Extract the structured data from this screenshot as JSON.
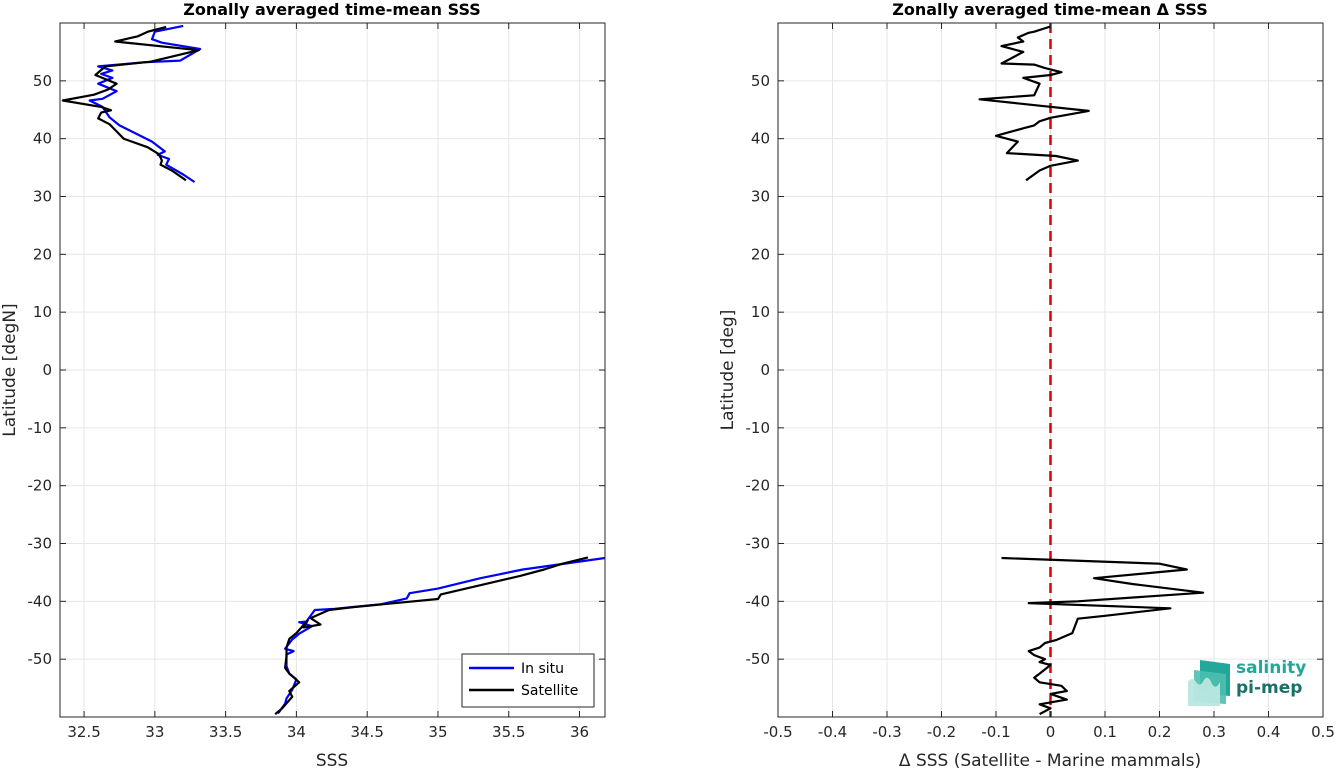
{
  "chart_data": [
    {
      "type": "line",
      "title": "Zonally averaged time-mean SSS",
      "xlabel": "SSS",
      "ylabel": "Latitude [degN]",
      "xlim": [
        32.33,
        36.18
      ],
      "ylim": [
        -60,
        60
      ],
      "xticks": [
        "32.5",
        "33",
        "33.5",
        "34",
        "34.5",
        "35",
        "35.5",
        "36"
      ],
      "xtick_values": [
        32.5,
        33,
        33.5,
        34,
        34.5,
        35,
        35.5,
        36
      ],
      "yticks": [
        "50",
        "40",
        "30",
        "20",
        "10",
        "0",
        "-10",
        "-20",
        "-30",
        "-40",
        "-50"
      ],
      "ytick_values": [
        50,
        40,
        30,
        20,
        10,
        0,
        -10,
        -20,
        -30,
        -40,
        -50
      ],
      "grid": true,
      "legend_position": "bottom-right",
      "series": [
        {
          "name": "In situ",
          "color": "#0000ff",
          "segments": [
            [
              [
                33.28,
                32.5
              ],
              [
                33.2,
                33.8
              ],
              [
                33.08,
                35.5
              ],
              [
                33.1,
                36.5
              ],
              [
                33.02,
                37.2
              ],
              [
                33.07,
                37.8
              ],
              [
                32.98,
                39.5
              ],
              [
                32.75,
                42.3
              ],
              [
                32.68,
                43.7
              ],
              [
                32.63,
                45.5
              ],
              [
                32.54,
                46.6
              ],
              [
                32.63,
                46.9
              ],
              [
                32.73,
                48.2
              ],
              [
                32.6,
                49.5
              ],
              [
                32.7,
                50.5
              ],
              [
                32.62,
                51.2
              ],
              [
                32.7,
                51.8
              ],
              [
                32.6,
                52.5
              ],
              [
                32.92,
                53.2
              ],
              [
                33.18,
                53.5
              ],
              [
                33.32,
                55.5
              ],
              [
                33.05,
                56.6
              ],
              [
                32.98,
                57.2
              ],
              [
                33.0,
                58.5
              ],
              [
                33.2,
                59.5
              ]
            ],
            [
              [
                36.18,
                -32.5
              ],
              [
                35.6,
                -34.5
              ],
              [
                35.3,
                -36.0
              ],
              [
                35.0,
                -37.8
              ],
              [
                34.8,
                -38.6
              ],
              [
                34.78,
                -39.5
              ],
              [
                34.6,
                -40.5
              ],
              [
                34.27,
                -41.3
              ],
              [
                34.13,
                -41.5
              ],
              [
                34.07,
                -43.5
              ],
              [
                34.02,
                -43.6
              ],
              [
                34.11,
                -44.3
              ],
              [
                34.02,
                -45.6
              ],
              [
                33.97,
                -46.6
              ],
              [
                33.92,
                -48.2
              ],
              [
                33.98,
                -48.6
              ],
              [
                33.93,
                -49.2
              ],
              [
                33.93,
                -51.2
              ],
              [
                33.95,
                -52.5
              ],
              [
                34.0,
                -53.5
              ],
              [
                33.97,
                -55.3
              ],
              [
                33.93,
                -56.8
              ],
              [
                33.92,
                -57.7
              ],
              [
                33.87,
                -59.4
              ]
            ]
          ]
        },
        {
          "name": "Satellite",
          "color": "#000000",
          "segments": [
            [
              [
                33.22,
                32.8
              ],
              [
                33.12,
                34.5
              ],
              [
                33.04,
                35.5
              ],
              [
                33.05,
                36.2
              ],
              [
                33.03,
                37.3
              ],
              [
                32.95,
                38.5
              ],
              [
                32.78,
                40.0
              ],
              [
                32.72,
                41.5
              ],
              [
                32.68,
                42.5
              ],
              [
                32.6,
                43.5
              ],
              [
                32.62,
                44.5
              ],
              [
                32.69,
                44.9
              ],
              [
                32.62,
                45.5
              ],
              [
                32.35,
                46.6
              ],
              [
                32.57,
                47.6
              ],
              [
                32.67,
                48.5
              ],
              [
                32.73,
                49.5
              ],
              [
                32.58,
                51.0
              ],
              [
                32.65,
                52.5
              ],
              [
                32.97,
                53.3
              ],
              [
                33.31,
                55.3
              ],
              [
                32.72,
                56.8
              ],
              [
                32.88,
                57.7
              ],
              [
                32.95,
                58.5
              ],
              [
                33.08,
                59.3
              ]
            ],
            [
              [
                36.06,
                -32.4
              ],
              [
                35.88,
                -33.5
              ],
              [
                35.75,
                -34.5
              ],
              [
                35.58,
                -35.6
              ],
              [
                35.02,
                -38.8
              ],
              [
                35.0,
                -39.6
              ],
              [
                34.4,
                -41.0
              ],
              [
                34.23,
                -41.5
              ],
              [
                34.1,
                -42.9
              ],
              [
                34.17,
                -44.0
              ],
              [
                34.05,
                -44.5
              ],
              [
                34.08,
                -43.3
              ],
              [
                34.0,
                -45.5
              ],
              [
                33.95,
                -46.5
              ],
              [
                33.93,
                -48.0
              ],
              [
                33.93,
                -49.5
              ],
              [
                33.92,
                -51.5
              ],
              [
                33.95,
                -52.5
              ],
              [
                34.02,
                -54.0
              ],
              [
                33.95,
                -55.5
              ],
              [
                33.97,
                -56.5
              ],
              [
                33.9,
                -58.5
              ],
              [
                33.85,
                -59.5
              ]
            ]
          ]
        }
      ]
    },
    {
      "type": "line",
      "title": "Zonally averaged time-mean Δ SSS",
      "xlabel": "Δ SSS (Satellite - Marine mammals)",
      "ylabel": "Latitude [deg]",
      "xlim": [
        -0.5,
        0.5
      ],
      "ylim": [
        -60,
        60
      ],
      "xticks": [
        "-0.5",
        "-0.4",
        "-0.3",
        "-0.2",
        "-0.1",
        "0",
        "0.1",
        "0.2",
        "0.3",
        "0.4",
        "0.5"
      ],
      "xtick_values": [
        -0.5,
        -0.4,
        -0.3,
        -0.2,
        -0.1,
        0,
        0.1,
        0.2,
        0.3,
        0.4,
        0.5
      ],
      "yticks": [
        "50",
        "40",
        "30",
        "20",
        "10",
        "0",
        "-10",
        "-20",
        "-30",
        "-40",
        "-50"
      ],
      "ytick_values": [
        50,
        40,
        30,
        20,
        10,
        0,
        -10,
        -20,
        -30,
        -40,
        -50
      ],
      "grid": true,
      "reference_line": {
        "x": 0,
        "color": "#dd0000",
        "style": "dashed"
      },
      "series": [
        {
          "color": "#000000",
          "segments": [
            [
              [
                -0.045,
                32.8
              ],
              [
                -0.02,
                34.5
              ],
              [
                0.0,
                35.3
              ],
              [
                0.05,
                36.2
              ],
              [
                0.01,
                37.0
              ],
              [
                -0.08,
                37.5
              ],
              [
                -0.06,
                39.5
              ],
              [
                -0.1,
                40.5
              ],
              [
                -0.05,
                41.8
              ],
              [
                -0.03,
                42.3
              ],
              [
                -0.02,
                43.0
              ],
              [
                0.0,
                43.6
              ],
              [
                0.07,
                44.8
              ],
              [
                -0.13,
                46.8
              ],
              [
                -0.03,
                47.5
              ],
              [
                -0.02,
                49.5
              ],
              [
                -0.05,
                50.5
              ],
              [
                0.0,
                51.0
              ],
              [
                0.02,
                51.5
              ],
              [
                -0.01,
                52.2
              ],
              [
                -0.03,
                52.8
              ],
              [
                -0.09,
                53.0
              ],
              [
                -0.05,
                55.0
              ],
              [
                -0.09,
                56.0
              ],
              [
                -0.05,
                56.8
              ],
              [
                -0.06,
                57.5
              ],
              [
                -0.04,
                58.3
              ],
              [
                -0.03,
                58.5
              ],
              [
                0.0,
                59.4
              ]
            ],
            [
              [
                -0.09,
                -32.5
              ],
              [
                0.2,
                -33.5
              ],
              [
                0.25,
                -34.5
              ],
              [
                0.08,
                -36.0
              ],
              [
                0.15,
                -37.0
              ],
              [
                0.28,
                -38.5
              ],
              [
                0.05,
                -40.0
              ],
              [
                -0.04,
                -40.3
              ],
              [
                0.22,
                -41.2
              ],
              [
                0.1,
                -42.5
              ],
              [
                0.05,
                -43.0
              ],
              [
                0.04,
                -45.5
              ],
              [
                0.01,
                -46.7
              ],
              [
                -0.01,
                -47.2
              ],
              [
                -0.02,
                -48.0
              ],
              [
                -0.04,
                -48.6
              ],
              [
                -0.03,
                -49.3
              ],
              [
                -0.01,
                -50.0
              ],
              [
                -0.02,
                -50.5
              ],
              [
                0.0,
                -51.0
              ],
              [
                -0.02,
                -52.5
              ],
              [
                -0.03,
                -53.2
              ],
              [
                -0.02,
                -54.0
              ],
              [
                0.02,
                -54.6
              ],
              [
                0.03,
                -55.5
              ],
              [
                0.0,
                -56.0
              ],
              [
                0.03,
                -57.0
              ],
              [
                -0.02,
                -57.8
              ],
              [
                0.0,
                -58.5
              ],
              [
                -0.02,
                -59.5
              ]
            ]
          ]
        }
      ]
    }
  ],
  "legend": {
    "items": [
      {
        "label": "In situ",
        "color": "#0000ff"
      },
      {
        "label": "Satellite",
        "color": "#000000"
      }
    ]
  },
  "logo": {
    "line1": "salinity",
    "line2": "pi-mep"
  }
}
